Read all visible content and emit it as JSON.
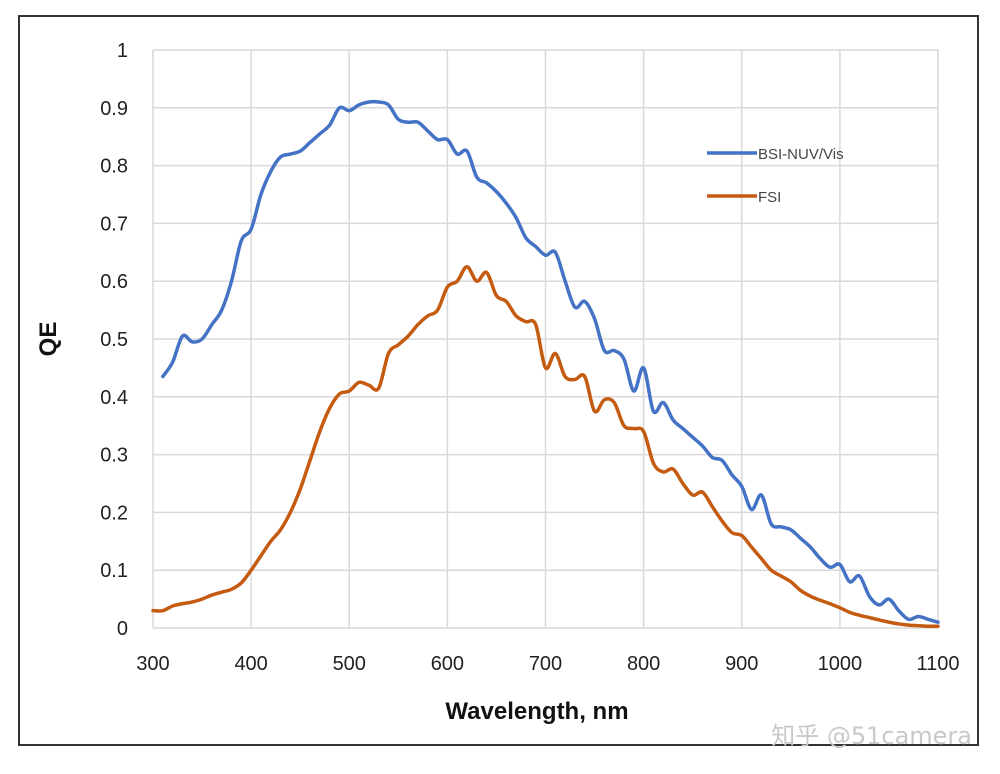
{
  "chart_data": {
    "type": "line",
    "title": "",
    "xlabel": "Wavelength, nm",
    "ylabel": "QE",
    "xlim": [
      300,
      1100
    ],
    "ylim": [
      0,
      1
    ],
    "grid": true,
    "legend_position": "top-right",
    "x_ticks": [
      "300",
      "400",
      "500",
      "600",
      "700",
      "800",
      "900",
      "1000",
      "1100"
    ],
    "y_ticks": [
      "0",
      "0.1",
      "0.2",
      "0.3",
      "0.4",
      "0.5",
      "0.6",
      "0.7",
      "0.8",
      "0.9",
      "1"
    ],
    "series": [
      {
        "name": "BSI-NUV/Vis",
        "color": "#4472C4",
        "x": [
          310,
          320,
          330,
          340,
          350,
          360,
          370,
          380,
          390,
          400,
          410,
          420,
          430,
          440,
          450,
          460,
          470,
          480,
          490,
          500,
          510,
          520,
          530,
          540,
          550,
          560,
          570,
          580,
          590,
          600,
          610,
          620,
          630,
          640,
          650,
          660,
          670,
          680,
          690,
          700,
          710,
          720,
          730,
          740,
          750,
          760,
          770,
          780,
          790,
          800,
          810,
          820,
          830,
          840,
          850,
          860,
          870,
          880,
          890,
          900,
          910,
          920,
          930,
          940,
          950,
          960,
          970,
          980,
          990,
          1000,
          1010,
          1020,
          1030,
          1040,
          1050,
          1060,
          1070,
          1080,
          1090,
          1100
        ],
        "values": [
          0.435,
          0.46,
          0.505,
          0.495,
          0.5,
          0.525,
          0.55,
          0.6,
          0.67,
          0.69,
          0.75,
          0.79,
          0.815,
          0.82,
          0.825,
          0.84,
          0.855,
          0.87,
          0.9,
          0.895,
          0.905,
          0.91,
          0.91,
          0.905,
          0.88,
          0.875,
          0.875,
          0.86,
          0.845,
          0.845,
          0.82,
          0.825,
          0.78,
          0.77,
          0.755,
          0.735,
          0.71,
          0.675,
          0.66,
          0.645,
          0.65,
          0.6,
          0.555,
          0.565,
          0.535,
          0.48,
          0.48,
          0.465,
          0.41,
          0.45,
          0.375,
          0.39,
          0.36,
          0.345,
          0.33,
          0.315,
          0.295,
          0.29,
          0.265,
          0.245,
          0.205,
          0.23,
          0.18,
          0.175,
          0.17,
          0.155,
          0.14,
          0.12,
          0.105,
          0.11,
          0.08,
          0.09,
          0.055,
          0.04,
          0.05,
          0.03,
          0.015,
          0.02,
          0.015,
          0.01
        ]
      },
      {
        "name": "FSI",
        "color": "#C55A11",
        "x": [
          300,
          310,
          320,
          330,
          340,
          350,
          360,
          370,
          380,
          390,
          400,
          410,
          420,
          430,
          440,
          450,
          460,
          470,
          480,
          490,
          500,
          510,
          520,
          530,
          540,
          550,
          560,
          570,
          580,
          590,
          600,
          610,
          620,
          630,
          640,
          650,
          660,
          670,
          680,
          690,
          700,
          710,
          720,
          730,
          740,
          750,
          760,
          770,
          780,
          790,
          800,
          810,
          820,
          830,
          840,
          850,
          860,
          870,
          880,
          890,
          900,
          910,
          920,
          930,
          940,
          950,
          960,
          970,
          980,
          990,
          1000,
          1010,
          1020,
          1030,
          1040,
          1050,
          1060,
          1070,
          1080,
          1090,
          1100
        ],
        "values": [
          0.03,
          0.03,
          0.038,
          0.042,
          0.045,
          0.05,
          0.057,
          0.062,
          0.067,
          0.078,
          0.1,
          0.125,
          0.15,
          0.17,
          0.2,
          0.24,
          0.29,
          0.34,
          0.38,
          0.405,
          0.41,
          0.425,
          0.42,
          0.415,
          0.475,
          0.49,
          0.505,
          0.525,
          0.54,
          0.55,
          0.59,
          0.6,
          0.625,
          0.6,
          0.615,
          0.575,
          0.565,
          0.54,
          0.53,
          0.525,
          0.45,
          0.475,
          0.435,
          0.43,
          0.435,
          0.375,
          0.395,
          0.39,
          0.35,
          0.345,
          0.34,
          0.285,
          0.27,
          0.275,
          0.25,
          0.23,
          0.235,
          0.21,
          0.185,
          0.165,
          0.16,
          0.14,
          0.12,
          0.1,
          0.09,
          0.08,
          0.065,
          0.055,
          0.048,
          0.042,
          0.035,
          0.027,
          0.022,
          0.018,
          0.014,
          0.01,
          0.007,
          0.005,
          0.004,
          0.003,
          0.003
        ]
      }
    ]
  },
  "watermark": "知乎 @51camera"
}
